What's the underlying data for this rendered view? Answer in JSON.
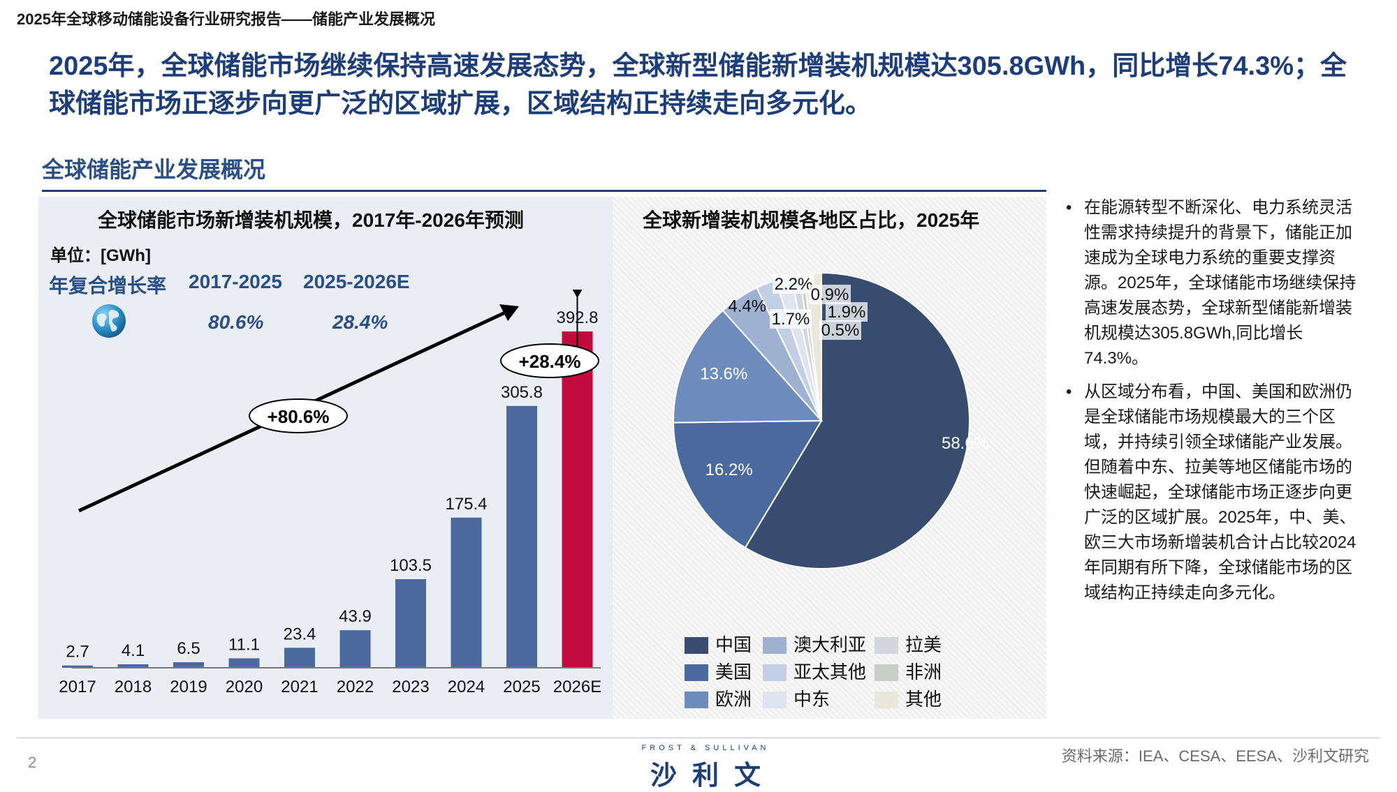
{
  "header": {
    "report_title": "2025年全球移动储能设备行业研究报告——储能产业发展概况",
    "headline": "2025年，全球储能市场继续保持高速发展态势，全球新型储能新增装机规模达305.8GWh，同比增长74.3%；全球储能市场正逐步向更广泛的区域扩展，区域结构正持续走向多元化。",
    "section_title": "全球储能产业发展概况"
  },
  "left_panel": {
    "unit": "单位：[GWh]",
    "cagr_label": "年复合增长率",
    "period_1": "2017-2025",
    "period_2": "2025-2026E",
    "cagr_1": "80.6%",
    "cagr_2": "28.4%",
    "globe_icon": "globe-icon",
    "callout_long": "+80.6%",
    "callout_short": "+28.4%"
  },
  "chart_data": [
    {
      "type": "bar",
      "title": "全球储能市场新增装机规模，2017年-2026年预测",
      "categories": [
        "2017",
        "2018",
        "2019",
        "2020",
        "2021",
        "2022",
        "2023",
        "2024",
        "2025",
        "2026E"
      ],
      "values": [
        2.7,
        4.1,
        6.5,
        11.1,
        23.4,
        43.9,
        103.5,
        175.4,
        305.8,
        392.8
      ],
      "value_labels": [
        "2.7",
        "4.1",
        "6.5",
        "11.1",
        "23.4",
        "43.9",
        "103.5",
        "175.4",
        "305.8",
        "392.8"
      ],
      "ylim": [
        0,
        392.8
      ],
      "bar_color": "#4a6a9e",
      "highlight_color": "#c20a3c",
      "highlight_category": "2026E",
      "grid": false
    },
    {
      "type": "pie",
      "title": "全球新增装机规模各地区占比，2025年",
      "slices": [
        {
          "name": "中国",
          "value": 58.6,
          "label": "58.6%",
          "color": "#374c6e"
        },
        {
          "name": "美国",
          "value": 16.2,
          "label": "16.2%",
          "color": "#4a6a9e"
        },
        {
          "name": "欧洲",
          "value": 13.6,
          "label": "13.6%",
          "color": "#6d8cbc"
        },
        {
          "name": "澳大利亚",
          "value": 4.4,
          "label": "4.4%",
          "color": "#9fb1d2"
        },
        {
          "name": "亚太其他",
          "value": 2.2,
          "label": "2.2%",
          "color": "#c2cfe4"
        },
        {
          "name": "中东",
          "value": 1.7,
          "label": "1.7%",
          "color": "#dee4f0"
        },
        {
          "name": "拉美",
          "value": 0.9,
          "label": "0.9%",
          "color": "#d4d6dc"
        },
        {
          "name": "非洲",
          "value": 0.5,
          "label": "0.5%",
          "color": "#c6d0c4"
        },
        {
          "name": "其他",
          "value": 1.9,
          "label": "1.9%",
          "color": "#eae7dc"
        }
      ],
      "legend_order": [
        "中国",
        "澳大利亚",
        "拉美",
        "美国",
        "亚太其他",
        "非洲",
        "欧洲",
        "中东",
        "其他"
      ],
      "legend_placement": "bottom"
    }
  ],
  "bullets": [
    "在能源转型不断深化、电力系统灵活性需求持续提升的背景下，储能正加速成为全球电力系统的重要支撑资源。2025年，全球储能市场继续保持高速发展态势，全球新型储能新增装机规模达305.8GWh,同比增长74.3%。",
    "从区域分布看，中国、美国和欧洲仍是全球储能市场规模最大的三个区域，并持续引领全球储能产业发展。但随着中东、拉美等地区储能市场的快速崛起，全球储能市场正逐步向更广泛的区域扩展。2025年，中、美、欧三大市场新增装机合计占比较2024年同期有所下降，全球储能市场的区域结构正持续走向多元化。"
  ],
  "footer": {
    "page_number": "2",
    "source": "资料来源：IEA、CESA、EESA、沙利文研究",
    "logo_en": "FROST & SULLIVAN",
    "logo_cn": "沙利文"
  }
}
